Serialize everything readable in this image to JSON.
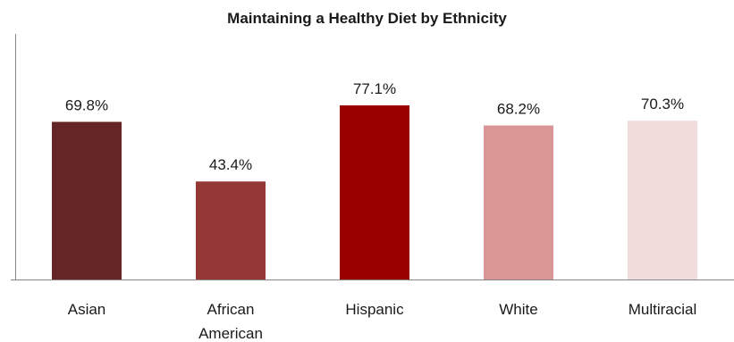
{
  "chart_data": {
    "type": "bar",
    "title": "Maintaining a Healthy Diet by Ethnicity",
    "xlabel": "",
    "ylabel": "",
    "categories": [
      [
        "Asian"
      ],
      [
        "African",
        "American"
      ],
      [
        "Hispanic"
      ],
      [
        "White"
      ],
      [
        "Multiracial"
      ]
    ],
    "values": [
      69.8,
      43.4,
      77.1,
      68.2,
      70.3
    ],
    "value_labels": [
      "69.8%",
      "43.4%",
      "77.1%",
      "68.2%",
      "70.3%"
    ],
    "colors": [
      "#652426",
      "#953735",
      "#9b0000",
      "#d99694",
      "#f2dcdb"
    ],
    "ylim": [
      0,
      100
    ],
    "grid": false,
    "legend": "none"
  }
}
